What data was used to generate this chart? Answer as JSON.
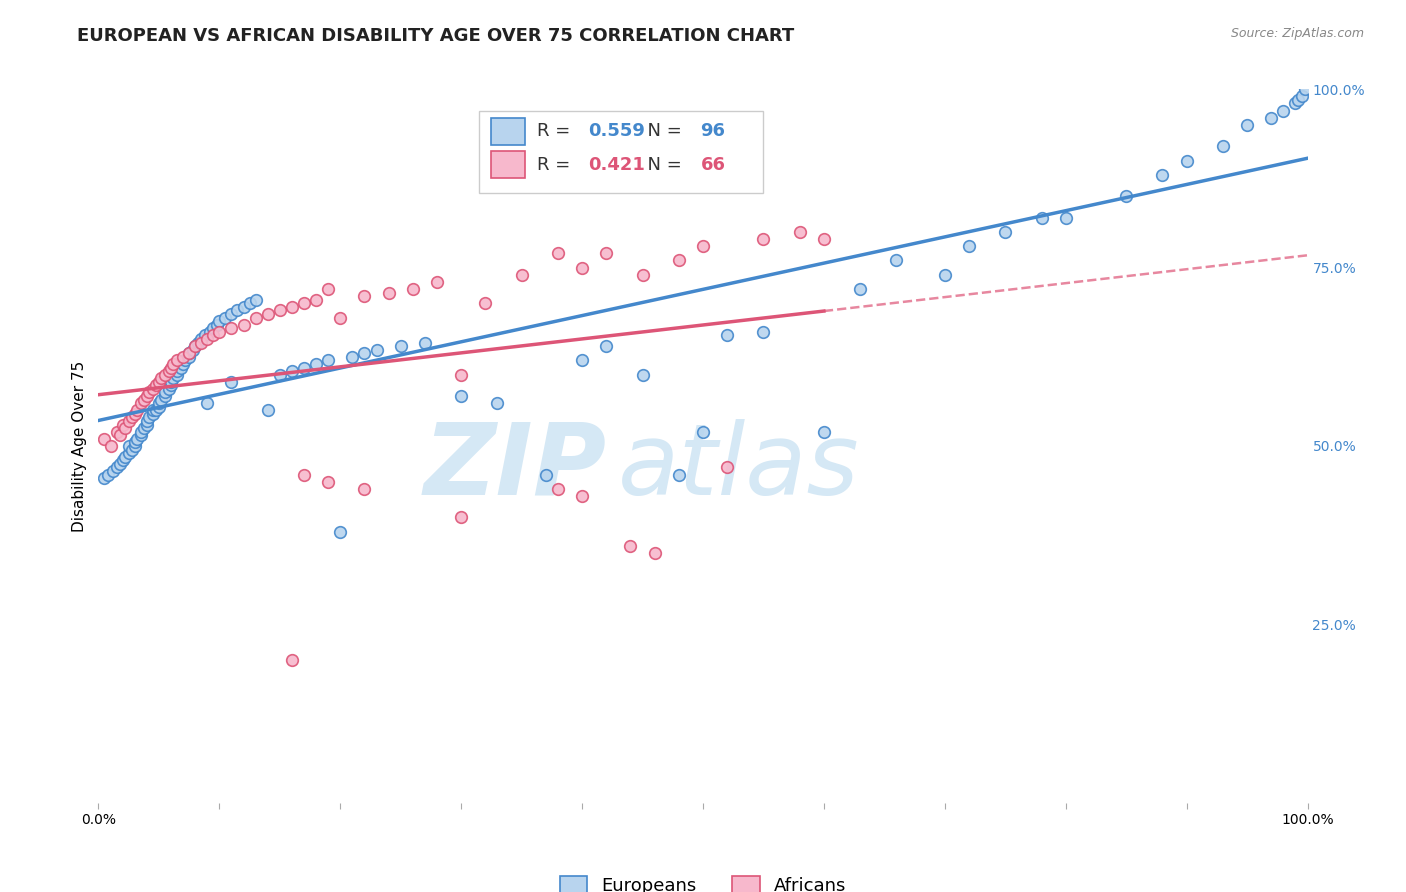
{
  "title": "EUROPEAN VS AFRICAN DISABILITY AGE OVER 75 CORRELATION CHART",
  "source": "Source: ZipAtlas.com",
  "ylabel": "Disability Age Over 75",
  "legend_europeans": "Europeans",
  "legend_africans": "Africans",
  "european_R": 0.559,
  "european_N": 96,
  "african_R": 0.421,
  "african_N": 66,
  "european_color": "#b8d4ee",
  "african_color": "#f7b8cc",
  "european_line_color": "#4488cc",
  "african_line_color": "#dd5577",
  "watermark_zip": "ZIP",
  "watermark_atlas": "atlas",
  "watermark_color": "#d5e8f5",
  "xmin": 0.0,
  "xmax": 1.0,
  "ymin": 0.0,
  "ymax": 1.0,
  "x_ticks": [
    0.0,
    0.1,
    0.2,
    0.3,
    0.4,
    0.5,
    0.6,
    0.7,
    0.8,
    0.9,
    1.0
  ],
  "x_tick_labels": [
    "0.0%",
    "",
    "",
    "",
    "",
    "",
    "",
    "",
    "",
    "",
    "100.0%"
  ],
  "y_ticks": [
    0.0,
    0.25,
    0.5,
    0.75,
    1.0
  ],
  "y_tick_labels": [
    "",
    "25.0%",
    "50.0%",
    "75.0%",
    "100.0%"
  ],
  "grid_color": "#e0e0e0",
  "background_color": "#ffffff",
  "title_fontsize": 13,
  "axis_label_fontsize": 11,
  "tick_fontsize": 10,
  "legend_fontsize": 13,
  "marker_size": 70,
  "marker_linewidth": 1.2,
  "europeans_x": [
    0.005,
    0.008,
    0.012,
    0.015,
    0.018,
    0.02,
    0.022,
    0.025,
    0.025,
    0.028,
    0.03,
    0.03,
    0.032,
    0.035,
    0.035,
    0.038,
    0.04,
    0.04,
    0.042,
    0.045,
    0.045,
    0.048,
    0.05,
    0.05,
    0.052,
    0.055,
    0.055,
    0.058,
    0.06,
    0.06,
    0.062,
    0.065,
    0.065,
    0.068,
    0.07,
    0.072,
    0.075,
    0.075,
    0.078,
    0.08,
    0.082,
    0.085,
    0.088,
    0.09,
    0.092,
    0.095,
    0.098,
    0.1,
    0.105,
    0.11,
    0.11,
    0.115,
    0.12,
    0.125,
    0.13,
    0.14,
    0.15,
    0.16,
    0.17,
    0.18,
    0.19,
    0.2,
    0.21,
    0.22,
    0.23,
    0.25,
    0.27,
    0.3,
    0.33,
    0.37,
    0.4,
    0.42,
    0.45,
    0.48,
    0.5,
    0.52,
    0.55,
    0.6,
    0.63,
    0.66,
    0.7,
    0.72,
    0.75,
    0.78,
    0.8,
    0.85,
    0.88,
    0.9,
    0.93,
    0.95,
    0.97,
    0.98,
    0.99,
    0.992,
    0.995,
    0.998
  ],
  "europeans_y": [
    0.455,
    0.46,
    0.465,
    0.47,
    0.475,
    0.48,
    0.485,
    0.49,
    0.5,
    0.495,
    0.5,
    0.505,
    0.51,
    0.515,
    0.52,
    0.525,
    0.53,
    0.535,
    0.54,
    0.545,
    0.55,
    0.55,
    0.555,
    0.56,
    0.565,
    0.57,
    0.575,
    0.58,
    0.585,
    0.59,
    0.595,
    0.6,
    0.605,
    0.61,
    0.615,
    0.62,
    0.625,
    0.63,
    0.635,
    0.64,
    0.645,
    0.65,
    0.655,
    0.56,
    0.66,
    0.665,
    0.67,
    0.675,
    0.68,
    0.685,
    0.59,
    0.69,
    0.695,
    0.7,
    0.705,
    0.55,
    0.6,
    0.605,
    0.61,
    0.615,
    0.62,
    0.38,
    0.625,
    0.63,
    0.635,
    0.64,
    0.645,
    0.57,
    0.56,
    0.46,
    0.62,
    0.64,
    0.6,
    0.46,
    0.52,
    0.655,
    0.66,
    0.52,
    0.72,
    0.76,
    0.74,
    0.78,
    0.8,
    0.82,
    0.82,
    0.85,
    0.88,
    0.9,
    0.92,
    0.95,
    0.96,
    0.97,
    0.98,
    0.985,
    0.99,
    1.0
  ],
  "africans_x": [
    0.005,
    0.01,
    0.015,
    0.018,
    0.02,
    0.022,
    0.025,
    0.028,
    0.03,
    0.032,
    0.035,
    0.038,
    0.04,
    0.042,
    0.045,
    0.048,
    0.05,
    0.052,
    0.055,
    0.058,
    0.06,
    0.062,
    0.065,
    0.07,
    0.075,
    0.08,
    0.085,
    0.09,
    0.095,
    0.1,
    0.11,
    0.12,
    0.13,
    0.14,
    0.15,
    0.16,
    0.17,
    0.18,
    0.19,
    0.2,
    0.22,
    0.24,
    0.26,
    0.28,
    0.3,
    0.32,
    0.35,
    0.38,
    0.4,
    0.42,
    0.45,
    0.48,
    0.5,
    0.52,
    0.55,
    0.58,
    0.6,
    0.16,
    0.22,
    0.17,
    0.19,
    0.3,
    0.38,
    0.4,
    0.44,
    0.46
  ],
  "africans_y": [
    0.51,
    0.5,
    0.52,
    0.515,
    0.53,
    0.525,
    0.535,
    0.54,
    0.545,
    0.55,
    0.56,
    0.565,
    0.57,
    0.575,
    0.58,
    0.585,
    0.59,
    0.595,
    0.6,
    0.605,
    0.61,
    0.615,
    0.62,
    0.625,
    0.63,
    0.64,
    0.645,
    0.65,
    0.655,
    0.66,
    0.665,
    0.67,
    0.68,
    0.685,
    0.69,
    0.695,
    0.7,
    0.705,
    0.72,
    0.68,
    0.71,
    0.715,
    0.72,
    0.73,
    0.6,
    0.7,
    0.74,
    0.77,
    0.75,
    0.77,
    0.74,
    0.76,
    0.78,
    0.47,
    0.79,
    0.8,
    0.79,
    0.2,
    0.44,
    0.46,
    0.45,
    0.4,
    0.44,
    0.43,
    0.36,
    0.35
  ]
}
